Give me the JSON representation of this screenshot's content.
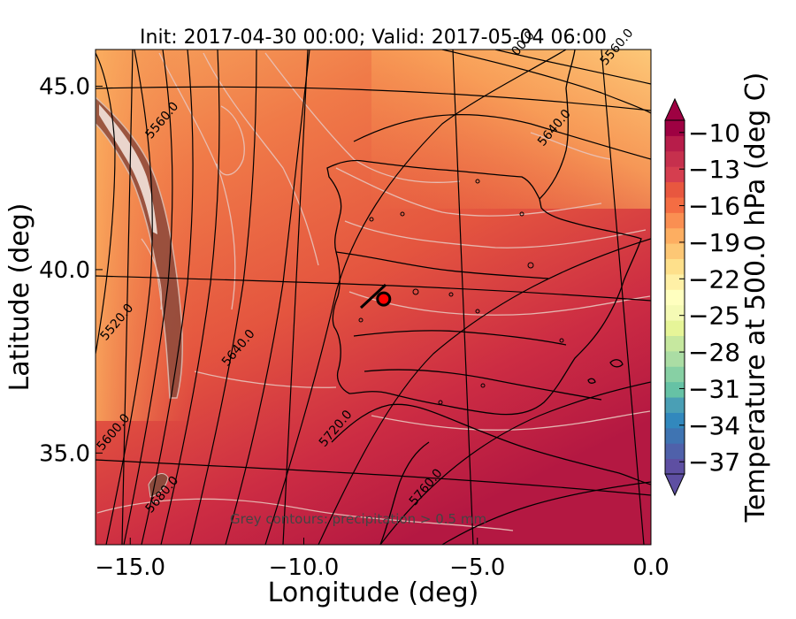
{
  "chart_data": {
    "type": "heatmap",
    "title": "Init: 2017-04-30 00:00; Valid: 2017-05-04 06:00",
    "xlabel": "Longitude (deg)",
    "ylabel": "Latitude (deg)",
    "xlim": [
      -16.0,
      0.0
    ],
    "ylim": [
      32.5,
      46.0
    ],
    "x_ticks": [
      -15.0,
      -10.0,
      -5.0,
      0.0
    ],
    "x_tick_labels": [
      "−15.0",
      "−10.0",
      "−5.0",
      "0.0"
    ],
    "y_ticks": [
      35.0,
      40.0,
      45.0
    ],
    "y_tick_labels": [
      "35.0",
      "40.0",
      "45.0"
    ],
    "colorbar": {
      "label": "Temperature at 500.0 hPa (deg C)",
      "ticks": [
        -10,
        -13,
        -16,
        -19,
        -22,
        -25,
        -28,
        -31,
        -34,
        -37
      ],
      "tick_labels": [
        "−10",
        "−13",
        "−16",
        "−19",
        "−22",
        "−25",
        "−28",
        "−31",
        "−34",
        "−37"
      ],
      "range": [
        -38,
        -9
      ],
      "extend": "both",
      "colormap": "Spectral_r"
    },
    "geopotential_contour_labels": [
      {
        "text": "5520.0",
        "lon": -15.3,
        "lat": 38.5
      },
      {
        "text": "5560.0",
        "lon": -14.0,
        "lat": 44.0
      },
      {
        "text": "5600.0",
        "lon": -15.4,
        "lat": 35.5
      },
      {
        "text": "5640.0",
        "lon": -11.8,
        "lat": 37.8
      },
      {
        "text": "5680.0",
        "lon": -14.0,
        "lat": 33.8
      },
      {
        "text": "5720.0",
        "lon": -9.0,
        "lat": 35.6
      },
      {
        "text": "5760.0",
        "lon": -6.4,
        "lat": 34.0
      },
      {
        "text": "5640.0",
        "lon": -2.7,
        "lat": 43.8
      },
      {
        "text": "5560.0",
        "lon": -0.9,
        "lat": 46.0
      },
      {
        "text": "00.0",
        "lon": -3.6,
        "lat": 46.1
      }
    ],
    "marker": {
      "lon": -7.7,
      "lat": 39.2,
      "color": "#ff0000"
    },
    "note": "Grey contours: precipitation > 0.5 mm"
  }
}
